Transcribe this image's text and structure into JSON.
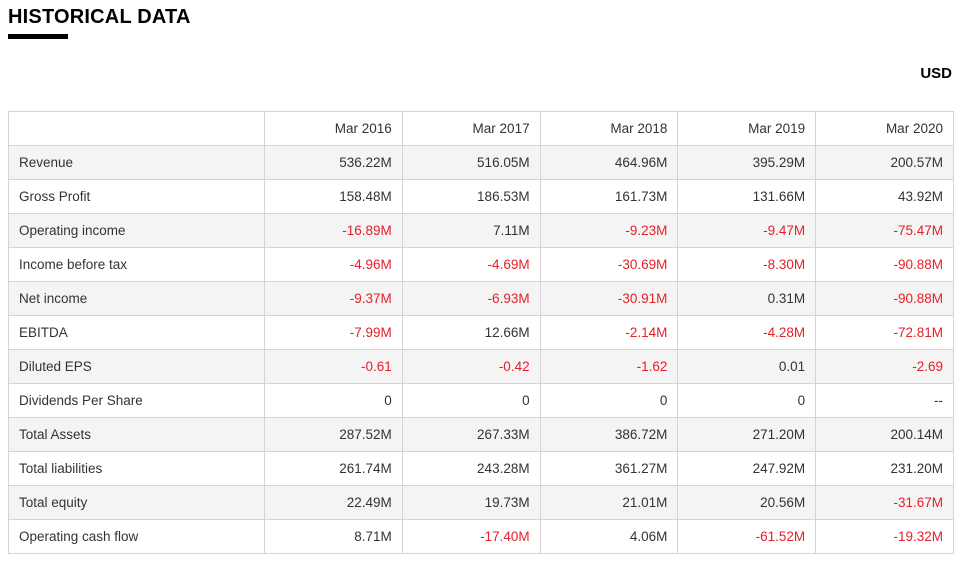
{
  "header": {
    "title": "HISTORICAL DATA",
    "currency": "USD"
  },
  "table": {
    "columns": [
      "",
      "Mar 2016",
      "Mar 2017",
      "Mar 2018",
      "Mar 2019",
      "Mar 2020"
    ],
    "rows": [
      {
        "label": "Revenue",
        "values": [
          "536.22M",
          "516.05M",
          "464.96M",
          "395.29M",
          "200.57M"
        ],
        "negative": [
          false,
          false,
          false,
          false,
          false
        ]
      },
      {
        "label": "Gross Profit",
        "values": [
          "158.48M",
          "186.53M",
          "161.73M",
          "131.66M",
          "43.92M"
        ],
        "negative": [
          false,
          false,
          false,
          false,
          false
        ]
      },
      {
        "label": "Operating income",
        "values": [
          "-16.89M",
          "7.11M",
          "-9.23M",
          "-9.47M",
          "-75.47M"
        ],
        "negative": [
          true,
          false,
          true,
          true,
          true
        ]
      },
      {
        "label": "Income before tax",
        "values": [
          "-4.96M",
          "-4.69M",
          "-30.69M",
          "-8.30M",
          "-90.88M"
        ],
        "negative": [
          true,
          true,
          true,
          true,
          true
        ]
      },
      {
        "label": "Net income",
        "values": [
          "-9.37M",
          "-6.93M",
          "-30.91M",
          "0.31M",
          "-90.88M"
        ],
        "negative": [
          true,
          true,
          true,
          false,
          true
        ]
      },
      {
        "label": "EBITDA",
        "values": [
          "-7.99M",
          "12.66M",
          "-2.14M",
          "-4.28M",
          "-72.81M"
        ],
        "negative": [
          true,
          false,
          true,
          true,
          true
        ]
      },
      {
        "label": "Diluted EPS",
        "values": [
          "-0.61",
          "-0.42",
          "-1.62",
          "0.01",
          "-2.69"
        ],
        "negative": [
          true,
          true,
          true,
          false,
          true
        ]
      },
      {
        "label": "Dividends Per Share",
        "values": [
          "0",
          "0",
          "0",
          "0",
          "--"
        ],
        "negative": [
          false,
          false,
          false,
          false,
          false
        ]
      },
      {
        "label": "Total Assets",
        "values": [
          "287.52M",
          "267.33M",
          "386.72M",
          "271.20M",
          "200.14M"
        ],
        "negative": [
          false,
          false,
          false,
          false,
          false
        ]
      },
      {
        "label": "Total liabilities",
        "values": [
          "261.74M",
          "243.28M",
          "361.27M",
          "247.92M",
          "231.20M"
        ],
        "negative": [
          false,
          false,
          false,
          false,
          false
        ]
      },
      {
        "label": "Total equity",
        "values": [
          "22.49M",
          "19.73M",
          "21.01M",
          "20.56M",
          "-31.67M"
        ],
        "negative": [
          false,
          false,
          false,
          false,
          true
        ]
      },
      {
        "label": "Operating cash flow",
        "values": [
          "8.71M",
          "-17.40M",
          "4.06M",
          "-61.52M",
          "-19.32M"
        ],
        "negative": [
          false,
          true,
          false,
          true,
          true
        ]
      }
    ]
  },
  "colors": {
    "negative": "#e4202a",
    "text": "#333333",
    "stripe": "#f4f4f4",
    "border": "#d4d4d4"
  }
}
